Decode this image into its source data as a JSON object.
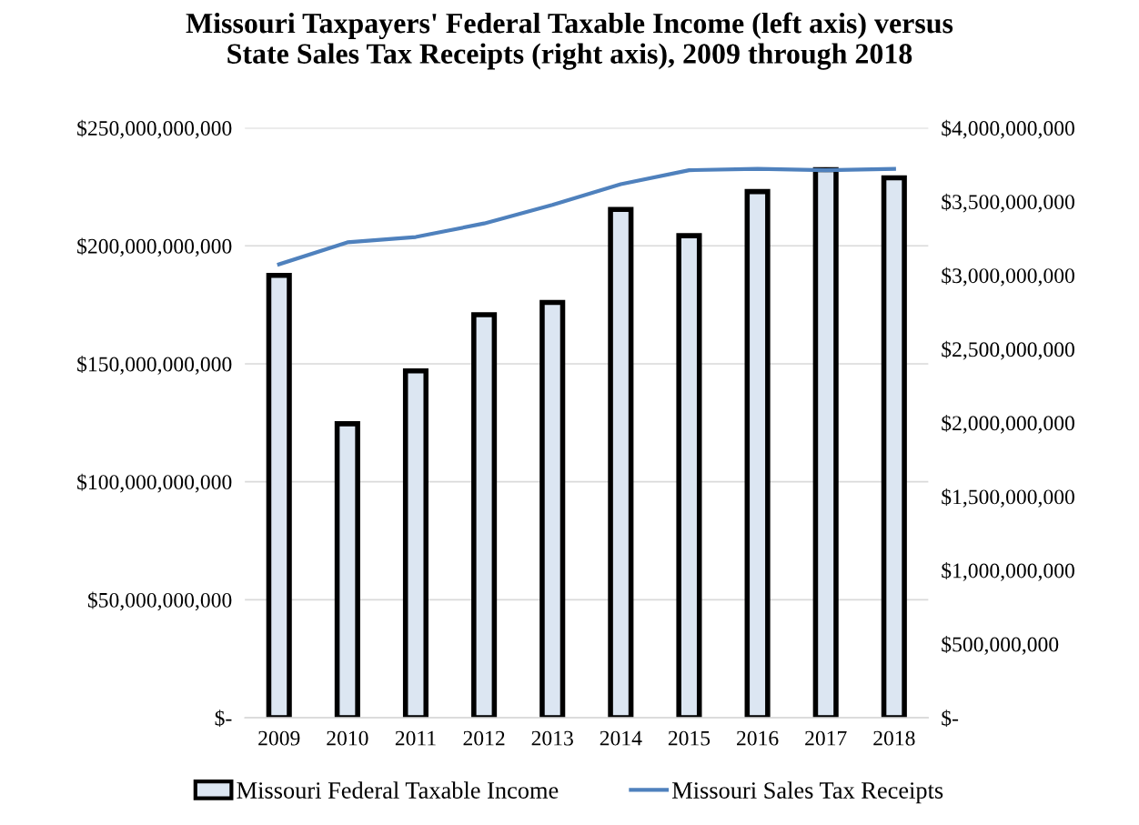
{
  "chart_data": {
    "type": "bar",
    "title": "Missouri Taxpayers' Federal Taxable Income (left axis) versus\nState Sales Tax Receipts (right axis), 2009 through 2018",
    "categories": [
      "2009",
      "2010",
      "2011",
      "2012",
      "2013",
      "2014",
      "2015",
      "2016",
      "2017",
      "2018"
    ],
    "series": [
      {
        "name": "Missouri Federal Taxable Income",
        "color": "#dce6f2",
        "values": [
          187500000000,
          124600000000,
          147000000000,
          170800000000,
          176000000000,
          215400000000,
          204300000000,
          223000000000,
          232300000000,
          228800000000
        ]
      },
      {
        "name": "Missouri Sales Tax Receipts",
        "type": "line",
        "axis": "y2",
        "color": "#4f81bd",
        "values": [
          3075000000,
          3224000000,
          3260000000,
          3352000000,
          3478000000,
          3618000000,
          3713000000,
          3722000000,
          3713000000,
          3722000000
        ]
      }
    ],
    "ylim": [
      0,
      250000000000
    ],
    "yticks": [
      {
        "value": 0,
        "label": "$-"
      },
      {
        "value": 50000000000,
        "label": "$50,000,000,000"
      },
      {
        "value": 100000000000,
        "label": "$100,000,000,000"
      },
      {
        "value": 150000000000,
        "label": "$150,000,000,000"
      },
      {
        "value": 200000000000,
        "label": "$200,000,000,000"
      },
      {
        "value": 250000000000,
        "label": "$250,000,000,000"
      }
    ],
    "y2lim": [
      0,
      4000000000
    ],
    "y2ticks": [
      {
        "value": 0,
        "label": "$-"
      },
      {
        "value": 500000000,
        "label": "$500,000,000"
      },
      {
        "value": 1000000000,
        "label": "$1,000,000,000"
      },
      {
        "value": 1500000000,
        "label": "$1,500,000,000"
      },
      {
        "value": 2000000000,
        "label": "$2,000,000,000"
      },
      {
        "value": 2500000000,
        "label": "$2,500,000,000"
      },
      {
        "value": 3000000000,
        "label": "$3,000,000,000"
      },
      {
        "value": 3500000000,
        "label": "$3,500,000,000"
      },
      {
        "value": 4000000000,
        "label": "$4,000,000,000"
      }
    ],
    "grid": "y",
    "legend": "bottom",
    "marker": "none",
    "line_style": "solid"
  }
}
